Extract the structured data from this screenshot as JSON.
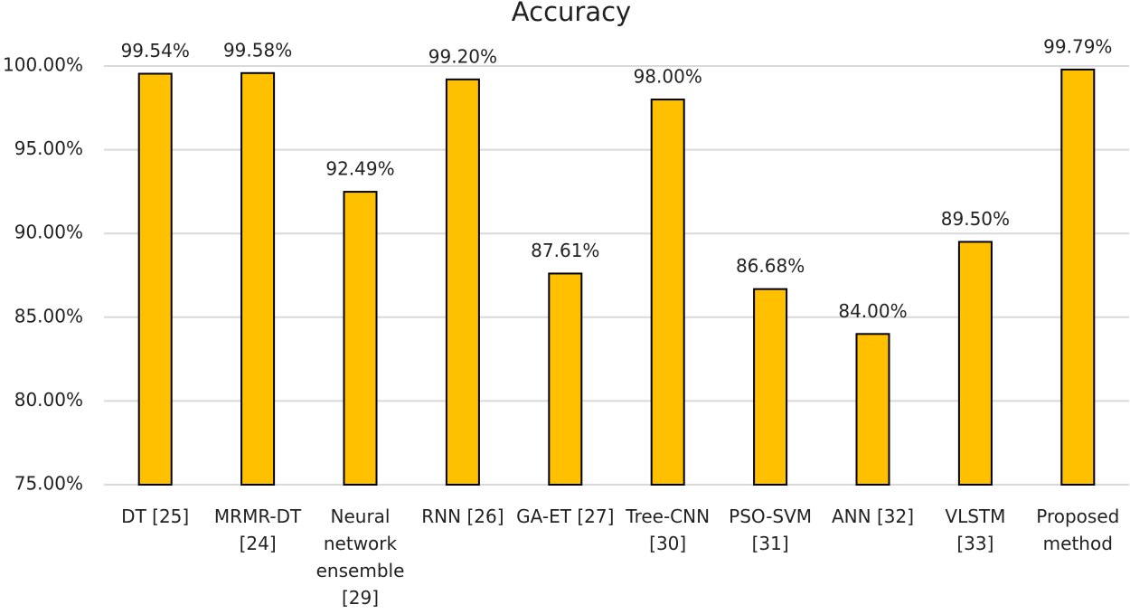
{
  "chart_data": {
    "type": "bar",
    "title": "Accuracy",
    "categories": [
      "DT [25]",
      "MRMR-DT [24]",
      "Neural network ensemble [29]",
      "RNN [26]",
      "GA-ET [27]",
      "Tree-CNN [30]",
      "PSO-SVM [31]",
      "ANN [32]",
      "VLSTM [33]",
      "Proposed method"
    ],
    "values": [
      99.54,
      99.58,
      92.49,
      99.2,
      87.61,
      98.0,
      86.68,
      84.0,
      89.5,
      99.79
    ],
    "value_labels": [
      "99.54%",
      "99.58%",
      "92.49%",
      "99.20%",
      "87.61%",
      "98.00%",
      "86.68%",
      "84.00%",
      "89.50%",
      "99.79%"
    ],
    "color": "#ffc000",
    "ylim": [
      75,
      100
    ],
    "yticks": [
      {
        "value": 75,
        "label": "75.00%"
      },
      {
        "value": 80,
        "label": "80.00%"
      },
      {
        "value": 85,
        "label": "85.00%"
      },
      {
        "value": 90,
        "label": "90.00%"
      },
      {
        "value": 95,
        "label": "95.00%"
      },
      {
        "value": 100,
        "label": "100.00%"
      }
    ],
    "grid": true
  }
}
